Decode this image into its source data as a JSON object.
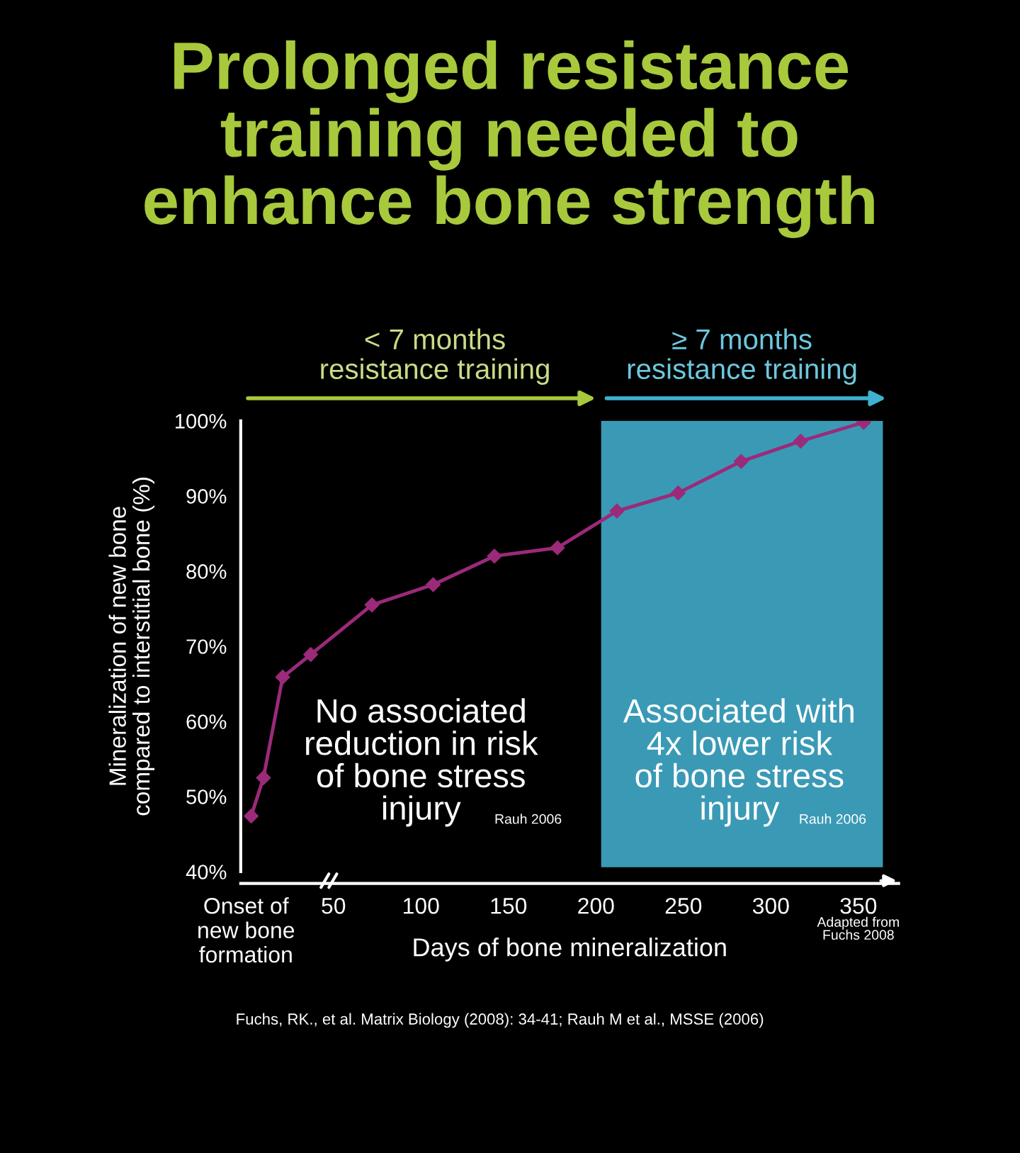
{
  "chart_data": {
    "type": "line",
    "title": "Prolonged resistance\ntraining needed to\nenhance bone strength",
    "xlabel": "Days of bone mineralization",
    "ylabel": "Mineralization of new bone\ncompared to interstitial bone (%)",
    "x": [
      3,
      10,
      21,
      37,
      72,
      107,
      142,
      178,
      212,
      247,
      283,
      317,
      353
    ],
    "series": [
      {
        "color": "#9b2a7a",
        "values": [
          47.4,
          52.5,
          65.9,
          68.9,
          75.5,
          78.2,
          82.0,
          83.1,
          88.0,
          90.4,
          94.6,
          97.3,
          99.8
        ]
      }
    ],
    "xlim": [
      -3,
      373
    ],
    "ylim": [
      40,
      100
    ],
    "xticks": [
      {
        "value": 0,
        "label": "Onset of\nnew bone\nformation"
      },
      50,
      100,
      150,
      200,
      250,
      300,
      350
    ],
    "yticks": [
      {
        "value": 40,
        "label": "40%"
      },
      {
        "value": 50,
        "label": "50%"
      },
      {
        "value": 60,
        "label": "60%"
      },
      {
        "value": 70,
        "label": "70%"
      },
      {
        "value": 80,
        "label": "80%"
      },
      {
        "value": 90,
        "label": "90%"
      },
      {
        "value": 100,
        "label": "100%"
      }
    ],
    "bands": [
      {
        "axis": "x",
        "from": 203,
        "to": 364,
        "color": "#3a9ab5"
      }
    ],
    "marker": "diamond",
    "line_style": "solid",
    "grid": false,
    "legend": false,
    "annotations": [
      "< 7 months\nresistance training",
      "≥ 7 months\nresistance training",
      "No associated\nreduction in risk\nof bone stress\ninjury",
      "Rauh 2006",
      "Associated with\n4x lower risk\nof bone stress\ninjury",
      "Rauh 2006",
      "Adapted from\nFuchs 2008",
      "Fuchs, RK., et al. Matrix Biology (2008): 34-41; Rauh M et al., MSSE (2006)"
    ]
  }
}
